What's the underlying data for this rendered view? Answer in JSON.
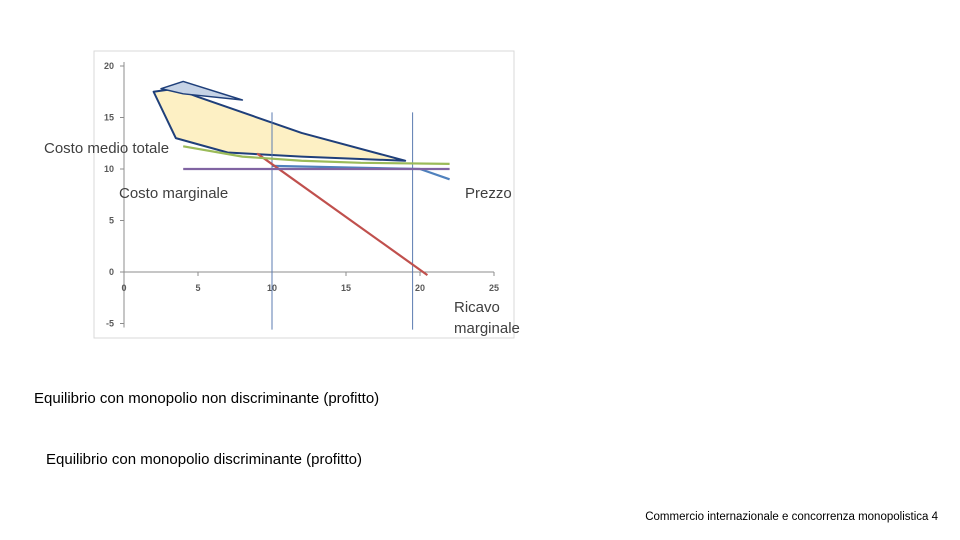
{
  "chart_data": {
    "type": "line",
    "xlim": [
      0,
      25
    ],
    "ylim": [
      -5,
      20
    ],
    "x_ticks": [
      "0",
      "5",
      "10",
      "15",
      "20",
      "25"
    ],
    "y_ticks": [
      "20",
      "15",
      "10",
      "5",
      "0",
      "-5"
    ],
    "grid": false,
    "series": [
      {
        "name": "Prezzo",
        "color": "#4f81bd",
        "x": [
          10,
          20,
          22
        ],
        "y": [
          10.3,
          10.0,
          9.0
        ]
      },
      {
        "name": "Ricavo marginale",
        "color": "#c0504d",
        "x": [
          9,
          20.5
        ],
        "y": [
          11.5,
          -0.3
        ]
      },
      {
        "name": "Costo medio totale",
        "color": "#9bbb59",
        "x": [
          4,
          8,
          12,
          16,
          22
        ],
        "y": [
          12.2,
          11.2,
          10.8,
          10.6,
          10.5
        ]
      },
      {
        "name": "Costo marginale",
        "color": "#8064a2",
        "x": [
          4,
          22
        ],
        "y": [
          10,
          10
        ]
      }
    ],
    "verticals": [
      10,
      19.5
    ],
    "profit_region": {
      "fill": "#fdf0c4",
      "stroke": "#1f3f7a",
      "points": [
        [
          3.5,
          17.8
        ],
        [
          2,
          17.5
        ],
        [
          3.5,
          13.0
        ],
        [
          7,
          11.6
        ],
        [
          12,
          11.2
        ],
        [
          19,
          10.8
        ],
        [
          12,
          13.5
        ],
        [
          5,
          17.0
        ]
      ]
    },
    "discriminating_region": {
      "fill": "#c6d3e6",
      "points": [
        [
          2.5,
          17.8
        ],
        [
          4,
          18.5
        ],
        [
          8,
          16.7
        ],
        [
          4,
          17.3
        ]
      ]
    },
    "annotations": [
      {
        "text": "Costo medio totale"
      },
      {
        "text": "Costo marginale"
      },
      {
        "text": "Prezzo"
      },
      {
        "text": "Ricavo"
      },
      {
        "text": "marginale"
      }
    ]
  },
  "captions": {
    "non_discriminating": "Equilibrio con monopolio non discriminante (profitto)",
    "discriminating": "Equilibrio con monopolio discriminante  (profitto)"
  },
  "footer": "Commercio internazionale e concorrenza monopolistica 4"
}
